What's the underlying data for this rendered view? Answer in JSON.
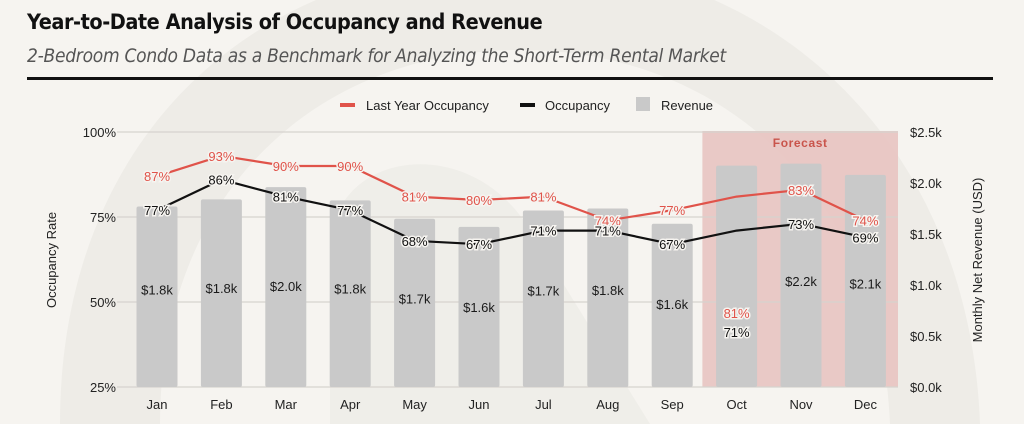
{
  "header": {
    "title": "Year-to-Date Analysis of Occupancy and Revenue",
    "subtitle": "2-Bedroom Condo Data as a Benchmark for Analyzing the Short-Term Rental Market"
  },
  "colors": {
    "background": "#f6f4f0",
    "last_year_line": "#e0534a",
    "occupancy_line": "#111111",
    "revenue_bar": "#c9c9c9",
    "forecast_band": "#e8c6c3",
    "forecast_text": "#c9544b",
    "grid": "#d6d3ce"
  },
  "chart_data": {
    "type": "bar+line",
    "title": "Year-to-Date Analysis of Occupancy and Revenue",
    "subtitle": "2-Bedroom Condo Data as a Benchmark for Analyzing the Short-Term Rental Market",
    "categories": [
      "Jan",
      "Feb",
      "Mar",
      "Apr",
      "May",
      "Jun",
      "Jul",
      "Aug",
      "Sep",
      "Oct",
      "Nov",
      "Dec"
    ],
    "legend": {
      "position": "top-center",
      "entries": [
        {
          "label": "Last Year Occupancy",
          "kind": "line",
          "color": "#e0534a"
        },
        {
          "label": "Occupancy",
          "kind": "line",
          "color": "#111111"
        },
        {
          "label": "Revenue",
          "kind": "box",
          "color": "#c9c9c9"
        }
      ]
    },
    "series": [
      {
        "name": "Last Year Occupancy",
        "axis": "left",
        "kind": "line",
        "values": [
          87,
          93,
          90,
          90,
          81,
          80,
          81,
          74,
          77,
          81,
          83,
          74
        ],
        "labels": [
          "87%",
          "93%",
          "90%",
          "90%",
          "81%",
          "80%",
          "81%",
          "74%",
          "77%",
          "81%",
          "83%",
          "74%"
        ]
      },
      {
        "name": "Occupancy",
        "axis": "left",
        "kind": "line",
        "values": [
          77,
          86,
          81,
          77,
          68,
          67,
          71,
          71,
          67,
          71,
          73,
          69
        ],
        "labels": [
          "77%",
          "86%",
          "81%",
          "77%",
          "68%",
          "67%",
          "71%",
          "71%",
          "67%",
          "71%",
          "73%",
          "69%"
        ]
      },
      {
        "name": "Revenue",
        "axis": "right",
        "kind": "bar",
        "values": [
          1.77,
          1.84,
          1.96,
          1.83,
          1.65,
          1.57,
          1.73,
          1.75,
          1.6,
          2.17,
          2.19,
          2.08
        ],
        "labels": [
          "$1.8k",
          "$1.8k",
          "$2.0k",
          "$1.8k",
          "$1.7k",
          "$1.6k",
          "$1.7k",
          "$1.8k",
          "$1.6k",
          "",
          "$2.2k",
          "$2.1k"
        ]
      }
    ],
    "forecast": {
      "label": "Forecast",
      "categories": [
        "Oct",
        "Nov",
        "Dec"
      ]
    },
    "y_left": {
      "label": "Occupancy Rate",
      "range": [
        25,
        100
      ],
      "ticks": [
        25,
        50,
        75,
        100
      ],
      "tick_labels": [
        "25%",
        "50%",
        "75%",
        "100%"
      ]
    },
    "y_right": {
      "label": "Monthly Net Revenue (USD)",
      "range": [
        0,
        2.5
      ],
      "ticks": [
        0,
        0.5,
        1.0,
        1.5,
        2.0,
        2.5
      ],
      "tick_labels": [
        "$0.0k",
        "$0.5k",
        "$1.0k",
        "$1.5k",
        "$2.0k",
        "$2.5k"
      ]
    },
    "grid": true
  }
}
